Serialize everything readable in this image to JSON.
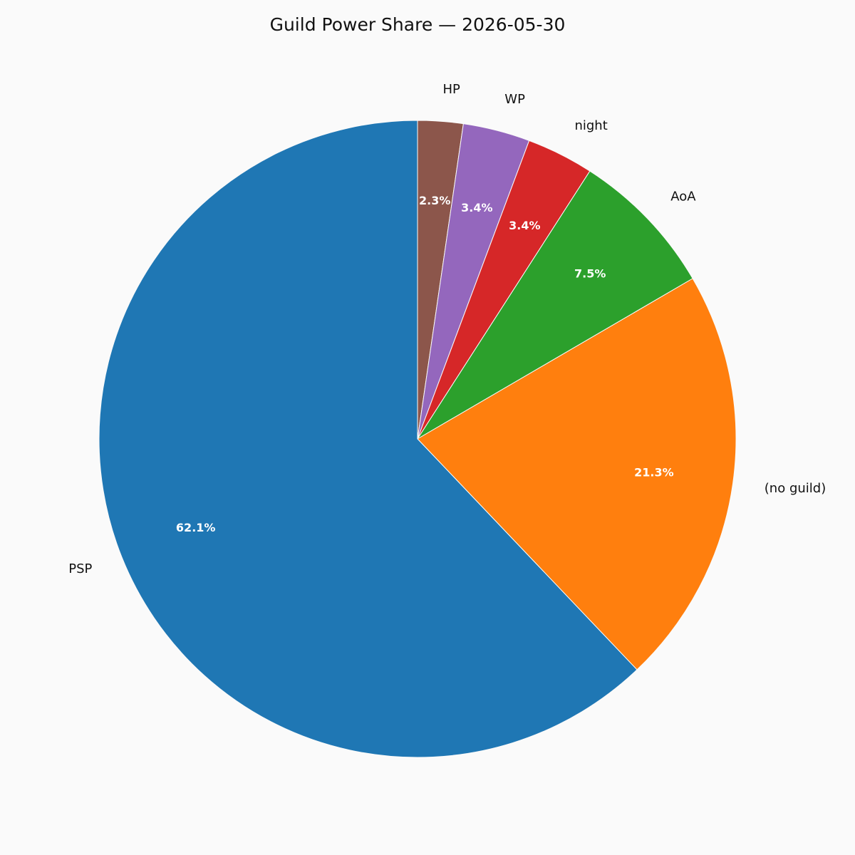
{
  "chart_data": {
    "type": "pie",
    "title": "Guild Power Share — 2026-05-30",
    "slices": [
      {
        "label": "HP",
        "value": 2.3,
        "pct_label": "2.3%",
        "color": "#8c564b"
      },
      {
        "label": "WP",
        "value": 3.4,
        "pct_label": "3.4%",
        "color": "#9467bd"
      },
      {
        "label": "night",
        "value": 3.4,
        "pct_label": "3.4%",
        "color": "#d62728"
      },
      {
        "label": "AoA",
        "value": 7.5,
        "pct_label": "7.5%",
        "color": "#2ca02c"
      },
      {
        "label": "(no guild)",
        "value": 21.3,
        "pct_label": "21.3%",
        "color": "#ff7f0e"
      },
      {
        "label": "PSP",
        "value": 62.1,
        "pct_label": "62.1%",
        "color": "#1f77b4"
      }
    ],
    "start_angle": "top",
    "direction": "clockwise",
    "legend": "none"
  }
}
